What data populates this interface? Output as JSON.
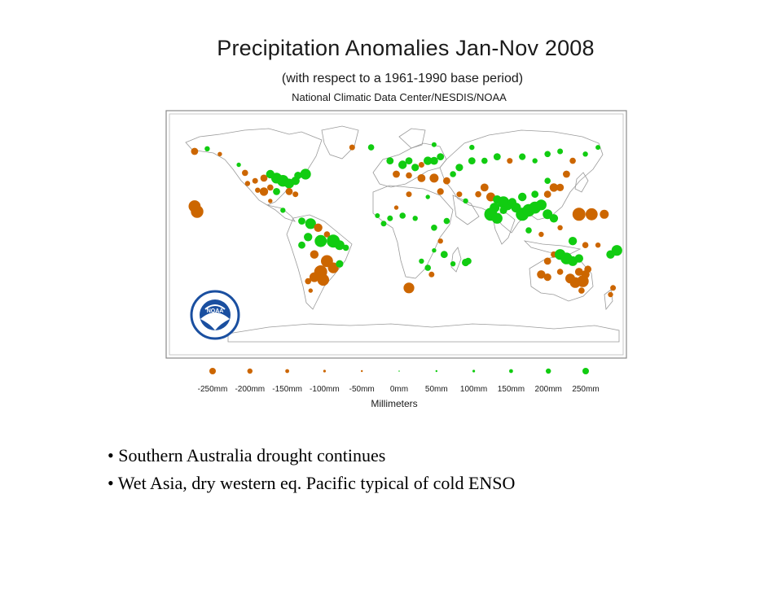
{
  "slide": {
    "title": "Precipitation Anomalies Jan-Nov 2008",
    "subtitle": "(with respect to a 1961-1990 base period)",
    "source": "National Climatic Data Center/NESDIS/NOAA",
    "logo_text": "NOAA",
    "bullets": [
      "• Southern Australia drought continues",
      "• Wet Asia, dry western eq. Pacific typical of cold ENSO"
    ]
  },
  "legend": {
    "title": "Millimeters",
    "items": [
      {
        "label": "-250mm",
        "value": -250
      },
      {
        "label": "-200mm",
        "value": -200
      },
      {
        "label": "-150mm",
        "value": -150
      },
      {
        "label": "-100mm",
        "value": -100
      },
      {
        "label": "-50mm",
        "value": -50
      },
      {
        "label": "0mm",
        "value": 0
      },
      {
        "label": "50mm",
        "value": 50
      },
      {
        "label": "100mm",
        "value": 100
      },
      {
        "label": "150mm",
        "value": 150
      },
      {
        "label": "200mm",
        "value": 200
      },
      {
        "label": "250mm",
        "value": 250
      }
    ]
  },
  "colors": {
    "dry": "#cc6600",
    "wet": "#11cc11",
    "land_outline": "#9a9a9a",
    "frame": "#8a8a8a",
    "noaa_blue": "#1a4fa0"
  },
  "stations": [
    {
      "lon": -160,
      "lat": 62,
      "mm": -120
    },
    {
      "lon": -150,
      "lat": 64,
      "mm": 80
    },
    {
      "lon": -140,
      "lat": 60,
      "mm": -60
    },
    {
      "lon": -125,
      "lat": 52,
      "mm": 60
    },
    {
      "lon": -120,
      "lat": 46,
      "mm": -100
    },
    {
      "lon": -118,
      "lat": 38,
      "mm": -80
    },
    {
      "lon": -112,
      "lat": 40,
      "mm": -90
    },
    {
      "lon": -105,
      "lat": 42,
      "mm": -120
    },
    {
      "lon": -100,
      "lat": 45,
      "mm": 150
    },
    {
      "lon": -95,
      "lat": 42,
      "mm": 200
    },
    {
      "lon": -90,
      "lat": 40,
      "mm": 220
    },
    {
      "lon": -85,
      "lat": 38,
      "mm": 180
    },
    {
      "lon": -80,
      "lat": 40,
      "mm": 150
    },
    {
      "lon": -78,
      "lat": 44,
      "mm": 130
    },
    {
      "lon": -72,
      "lat": 45,
      "mm": 200
    },
    {
      "lon": -100,
      "lat": 35,
      "mm": -100
    },
    {
      "lon": -95,
      "lat": 32,
      "mm": 120
    },
    {
      "lon": -85,
      "lat": 32,
      "mm": -120
    },
    {
      "lon": -80,
      "lat": 30,
      "mm": -90
    },
    {
      "lon": -105,
      "lat": 32,
      "mm": -150
    },
    {
      "lon": -110,
      "lat": 33,
      "mm": -80
    },
    {
      "lon": -100,
      "lat": 25,
      "mm": -60
    },
    {
      "lon": -90,
      "lat": 18,
      "mm": 80
    },
    {
      "lon": -160,
      "lat": 21,
      "mm": -230
    },
    {
      "lon": -158,
      "lat": 17,
      "mm": -240
    },
    {
      "lon": -75,
      "lat": 10,
      "mm": 120
    },
    {
      "lon": -68,
      "lat": 8,
      "mm": 200
    },
    {
      "lon": -62,
      "lat": 5,
      "mm": -150
    },
    {
      "lon": -55,
      "lat": 0,
      "mm": -100
    },
    {
      "lon": -70,
      "lat": -2,
      "mm": 150
    },
    {
      "lon": -60,
      "lat": -5,
      "mm": 230
    },
    {
      "lon": -50,
      "lat": -5,
      "mm": 250
    },
    {
      "lon": -45,
      "lat": -8,
      "mm": 180
    },
    {
      "lon": -40,
      "lat": -10,
      "mm": 100
    },
    {
      "lon": -75,
      "lat": -8,
      "mm": 120
    },
    {
      "lon": -65,
      "lat": -15,
      "mm": -150
    },
    {
      "lon": -55,
      "lat": -20,
      "mm": -230
    },
    {
      "lon": -50,
      "lat": -25,
      "mm": -200
    },
    {
      "lon": -45,
      "lat": -22,
      "mm": 130
    },
    {
      "lon": -60,
      "lat": -28,
      "mm": -250
    },
    {
      "lon": -65,
      "lat": -32,
      "mm": -180
    },
    {
      "lon": -58,
      "lat": -34,
      "mm": -220
    },
    {
      "lon": -70,
      "lat": -35,
      "mm": -100
    },
    {
      "lon": -68,
      "lat": -42,
      "mm": -60
    },
    {
      "lon": -35,
      "lat": 65,
      "mm": -90
    },
    {
      "lon": -20,
      "lat": 65,
      "mm": 100
    },
    {
      "lon": -5,
      "lat": 55,
      "mm": 120
    },
    {
      "lon": 5,
      "lat": 52,
      "mm": 150
    },
    {
      "lon": 10,
      "lat": 55,
      "mm": 120
    },
    {
      "lon": 15,
      "lat": 50,
      "mm": 130
    },
    {
      "lon": 20,
      "lat": 52,
      "mm": -90
    },
    {
      "lon": 25,
      "lat": 55,
      "mm": 150
    },
    {
      "lon": 30,
      "lat": 55,
      "mm": 140
    },
    {
      "lon": 35,
      "lat": 58,
      "mm": 120
    },
    {
      "lon": 0,
      "lat": 45,
      "mm": -120
    },
    {
      "lon": 10,
      "lat": 44,
      "mm": -100
    },
    {
      "lon": 20,
      "lat": 42,
      "mm": -140
    },
    {
      "lon": 30,
      "lat": 42,
      "mm": -160
    },
    {
      "lon": 40,
      "lat": 40,
      "mm": -120
    },
    {
      "lon": 45,
      "lat": 45,
      "mm": 100
    },
    {
      "lon": 50,
      "lat": 50,
      "mm": 130
    },
    {
      "lon": 60,
      "lat": 55,
      "mm": 120
    },
    {
      "lon": 70,
      "lat": 55,
      "mm": 100
    },
    {
      "lon": 80,
      "lat": 58,
      "mm": 120
    },
    {
      "lon": 90,
      "lat": 55,
      "mm": -90
    },
    {
      "lon": 100,
      "lat": 58,
      "mm": 110
    },
    {
      "lon": 110,
      "lat": 55,
      "mm": 80
    },
    {
      "lon": 120,
      "lat": 60,
      "mm": 100
    },
    {
      "lon": 130,
      "lat": 62,
      "mm": 90
    },
    {
      "lon": 140,
      "lat": 55,
      "mm": -100
    },
    {
      "lon": 150,
      "lat": 60,
      "mm": 80
    },
    {
      "lon": 160,
      "lat": 65,
      "mm": 70
    },
    {
      "lon": 60,
      "lat": 65,
      "mm": 80
    },
    {
      "lon": 30,
      "lat": 67,
      "mm": 70
    },
    {
      "lon": 50,
      "lat": 30,
      "mm": -90
    },
    {
      "lon": 35,
      "lat": 32,
      "mm": -110
    },
    {
      "lon": 55,
      "lat": 25,
      "mm": 80
    },
    {
      "lon": 65,
      "lat": 30,
      "mm": -100
    },
    {
      "lon": 70,
      "lat": 35,
      "mm": -140
    },
    {
      "lon": 75,
      "lat": 28,
      "mm": -160
    },
    {
      "lon": 80,
      "lat": 26,
      "mm": 150
    },
    {
      "lon": 85,
      "lat": 24,
      "mm": 220
    },
    {
      "lon": 88,
      "lat": 22,
      "mm": 200
    },
    {
      "lon": 92,
      "lat": 24,
      "mm": 150
    },
    {
      "lon": 78,
      "lat": 20,
      "mm": 180
    },
    {
      "lon": 75,
      "lat": 15,
      "mm": 250
    },
    {
      "lon": 80,
      "lat": 12,
      "mm": 200
    },
    {
      "lon": 85,
      "lat": 18,
      "mm": 130
    },
    {
      "lon": 95,
      "lat": 20,
      "mm": 180
    },
    {
      "lon": 100,
      "lat": 15,
      "mm": 250
    },
    {
      "lon": 105,
      "lat": 18,
      "mm": 240
    },
    {
      "lon": 110,
      "lat": 20,
      "mm": 230
    },
    {
      "lon": 115,
      "lat": 22,
      "mm": 200
    },
    {
      "lon": 100,
      "lat": 28,
      "mm": 150
    },
    {
      "lon": 110,
      "lat": 30,
      "mm": 120
    },
    {
      "lon": 120,
      "lat": 30,
      "mm": -120
    },
    {
      "lon": 125,
      "lat": 35,
      "mm": -150
    },
    {
      "lon": 130,
      "lat": 35,
      "mm": -130
    },
    {
      "lon": 120,
      "lat": 40,
      "mm": 100
    },
    {
      "lon": 135,
      "lat": 45,
      "mm": -120
    },
    {
      "lon": 125,
      "lat": 12,
      "mm": 150
    },
    {
      "lon": 120,
      "lat": 15,
      "mm": 180
    },
    {
      "lon": 145,
      "lat": 15,
      "mm": -250
    },
    {
      "lon": 155,
      "lat": 15,
      "mm": -230
    },
    {
      "lon": 165,
      "lat": 15,
      "mm": -160
    },
    {
      "lon": 130,
      "lat": 5,
      "mm": -80
    },
    {
      "lon": 105,
      "lat": 3,
      "mm": 100
    },
    {
      "lon": 115,
      "lat": 0,
      "mm": -80
    },
    {
      "lon": 140,
      "lat": -5,
      "mm": 150
    },
    {
      "lon": 150,
      "lat": -8,
      "mm": -100
    },
    {
      "lon": 160,
      "lat": -8,
      "mm": -80
    },
    {
      "lon": 170,
      "lat": -15,
      "mm": 150
    },
    {
      "lon": 175,
      "lat": -12,
      "mm": 200
    },
    {
      "lon": 120,
      "lat": -20,
      "mm": -120
    },
    {
      "lon": 125,
      "lat": -15,
      "mm": -100
    },
    {
      "lon": 130,
      "lat": -15,
      "mm": 200
    },
    {
      "lon": 135,
      "lat": -18,
      "mm": 220
    },
    {
      "lon": 140,
      "lat": -20,
      "mm": 180
    },
    {
      "lon": 145,
      "lat": -18,
      "mm": 150
    },
    {
      "lon": 115,
      "lat": -30,
      "mm": -150
    },
    {
      "lon": 120,
      "lat": -32,
      "mm": -130
    },
    {
      "lon": 130,
      "lat": -28,
      "mm": -100
    },
    {
      "lon": 138,
      "lat": -33,
      "mm": -180
    },
    {
      "lon": 142,
      "lat": -36,
      "mm": -200
    },
    {
      "lon": 148,
      "lat": -35,
      "mm": -220
    },
    {
      "lon": 150,
      "lat": -30,
      "mm": -150
    },
    {
      "lon": 152,
      "lat": -26,
      "mm": -120
    },
    {
      "lon": 145,
      "lat": -28,
      "mm": -140
    },
    {
      "lon": 147,
      "lat": -42,
      "mm": -100
    },
    {
      "lon": 172,
      "lat": -40,
      "mm": -90
    },
    {
      "lon": 170,
      "lat": -45,
      "mm": -80
    },
    {
      "lon": 55,
      "lat": -21,
      "mm": 130
    },
    {
      "lon": 57,
      "lat": -20,
      "mm": 110
    },
    {
      "lon": 45,
      "lat": -22,
      "mm": 80
    },
    {
      "lon": 30,
      "lat": -12,
      "mm": 60
    },
    {
      "lon": 35,
      "lat": -5,
      "mm": -80
    },
    {
      "lon": 30,
      "lat": 5,
      "mm": 100
    },
    {
      "lon": 15,
      "lat": 12,
      "mm": 80
    },
    {
      "lon": 5,
      "lat": 14,
      "mm": 100
    },
    {
      "lon": -5,
      "lat": 12,
      "mm": 90
    },
    {
      "lon": -15,
      "lat": 14,
      "mm": 70
    },
    {
      "lon": 0,
      "lat": 20,
      "mm": -60
    },
    {
      "lon": 10,
      "lat": 30,
      "mm": -90
    },
    {
      "lon": 25,
      "lat": 28,
      "mm": 60
    },
    {
      "lon": 20,
      "lat": -20,
      "mm": 80
    },
    {
      "lon": 25,
      "lat": -25,
      "mm": 100
    },
    {
      "lon": 28,
      "lat": -30,
      "mm": -90
    },
    {
      "lon": 38,
      "lat": -15,
      "mm": 120
    },
    {
      "lon": 10,
      "lat": -40,
      "mm": -200
    },
    {
      "lon": -10,
      "lat": 8,
      "mm": 90
    },
    {
      "lon": 40,
      "lat": 10,
      "mm": 100
    }
  ]
}
